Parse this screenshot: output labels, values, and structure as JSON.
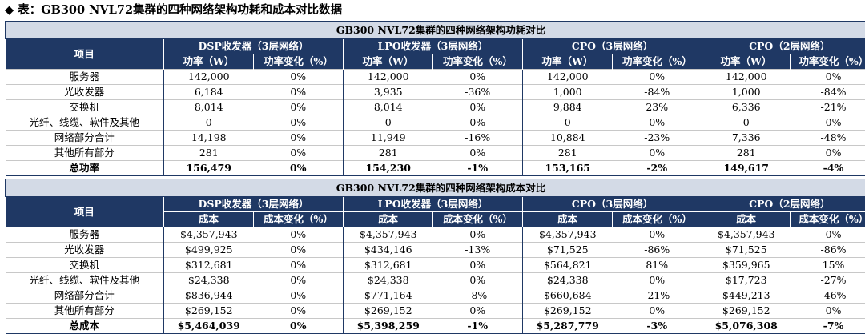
{
  "caption": "◆ 表：GB300 NVL72集群的四种网络架构功耗和成本对比数据",
  "tables": [
    {
      "title": "GB300 NVL72集群的四种网络架构功耗对比",
      "item_header": "项目",
      "groups": [
        "DSP收发器（3层网络）",
        "LPO收发器（3层网络）",
        "CPO（3层网络）",
        "CPO（2层网络）"
      ],
      "sub_headers": [
        "功率（W）",
        "功率变化（%）"
      ],
      "rows": [
        {
          "label": "服务器",
          "cells": [
            "142,000",
            "0%",
            "142,000",
            "0%",
            "142,000",
            "0%",
            "142,000",
            "0%"
          ]
        },
        {
          "label": "光收发器",
          "cells": [
            "6,184",
            "0%",
            "3,935",
            "-36%",
            "1,000",
            "-84%",
            "1,000",
            "-84%"
          ]
        },
        {
          "label": "交换机",
          "cells": [
            "8,014",
            "0%",
            "8,014",
            "0%",
            "9,884",
            "23%",
            "6,336",
            "-21%"
          ]
        },
        {
          "label": "光纤、线缆、软件及其他",
          "cells": [
            "0",
            "0%",
            "0",
            "0%",
            "0",
            "0%",
            "0",
            "0%"
          ]
        },
        {
          "label": "网络部分合计",
          "cells": [
            "14,198",
            "0%",
            "11,949",
            "-16%",
            "10,884",
            "-23%",
            "7,336",
            "-48%"
          ]
        },
        {
          "label": "其他所有部分",
          "cells": [
            "281",
            "0%",
            "281",
            "0%",
            "281",
            "0%",
            "281",
            "0%"
          ]
        },
        {
          "label": "总功率",
          "cells": [
            "156,479",
            "0%",
            "154,230",
            "-1%",
            "153,165",
            "-2%",
            "149,617",
            "-4%"
          ],
          "total": true
        }
      ]
    },
    {
      "title": "GB300 NVL72集群的四种网络架构成本对比",
      "item_header": "项目",
      "groups": [
        "DSP收发器（3层网络）",
        "LPO收发器（3层网络）",
        "CPO（3层网络）",
        "CPO（2层网络）"
      ],
      "sub_headers": [
        "成本",
        "成本变化（%）"
      ],
      "rows": [
        {
          "label": "服务器",
          "cells": [
            "$4,357,943",
            "0%",
            "$4,357,943",
            "0%",
            "$4,357,943",
            "0%",
            "$4,357,943",
            "0%"
          ]
        },
        {
          "label": "光收发器",
          "cells": [
            "$499,925",
            "0%",
            "$434,146",
            "-13%",
            "$71,525",
            "-86%",
            "$71,525",
            "-86%"
          ]
        },
        {
          "label": "交换机",
          "cells": [
            "$312,681",
            "0%",
            "$312,681",
            "0%",
            "$564,821",
            "81%",
            "$359,965",
            "15%"
          ]
        },
        {
          "label": "光纤、线缆、软件及其他",
          "cells": [
            "$24,338",
            "0%",
            "$24,338",
            "0%",
            "$24,338",
            "0%",
            "$17,723",
            "-27%"
          ]
        },
        {
          "label": "网络部分合计",
          "cells": [
            "$836,944",
            "0%",
            "$771,164",
            "-8%",
            "$660,684",
            "-21%",
            "$449,213",
            "-46%"
          ]
        },
        {
          "label": "其他所有部分",
          "cells": [
            "$269,152",
            "0%",
            "$269,152",
            "0%",
            "$269,152",
            "0%",
            "$269,152",
            "0%"
          ]
        },
        {
          "label": "总成本",
          "cells": [
            "$5,464,039",
            "0%",
            "$5,398,259",
            "-1%",
            "$5,287,779",
            "-3%",
            "$5,076,308",
            "-7%"
          ],
          "total": true
        }
      ]
    }
  ],
  "colors": {
    "header_bg": "#1f3864",
    "title_bg": "#d3dae6",
    "header_text": "#ffffff"
  }
}
